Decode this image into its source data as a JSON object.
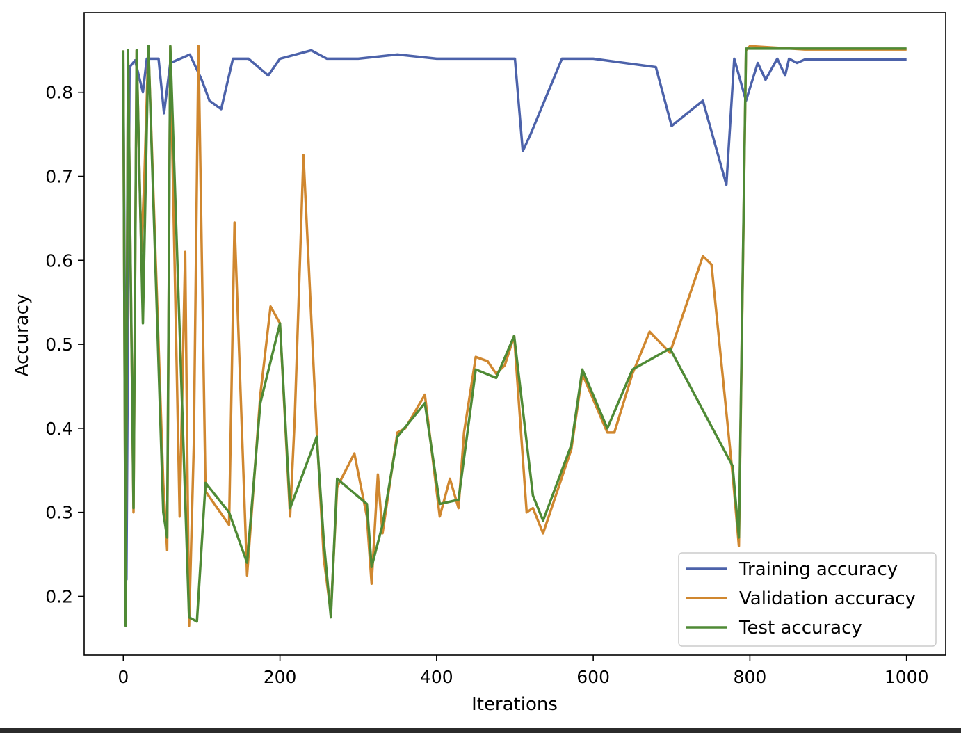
{
  "chart_data": {
    "type": "line",
    "title": "",
    "xlabel": "Iterations",
    "ylabel": "Accuracy",
    "xlim": [
      -50,
      1050
    ],
    "ylim": [
      0.13,
      0.895
    ],
    "xticks": [
      0,
      200,
      400,
      600,
      800,
      1000
    ],
    "yticks": [
      0.2,
      0.3,
      0.4,
      0.5,
      0.6,
      0.7,
      0.8
    ],
    "grid": false,
    "legend_position": "lower-right",
    "colors": {
      "training": "#4c62aa",
      "validation": "#d0872f",
      "test": "#4f8a35"
    },
    "series": [
      {
        "name": "Training accuracy",
        "color": "#4c62aa",
        "plateau": 0.839,
        "points": [
          [
            0,
            0.835
          ],
          [
            4,
            0.22
          ],
          [
            8,
            0.83
          ],
          [
            15,
            0.838
          ],
          [
            25,
            0.8
          ],
          [
            30,
            0.84
          ],
          [
            45,
            0.84
          ],
          [
            52,
            0.775
          ],
          [
            60,
            0.835
          ],
          [
            85,
            0.845
          ],
          [
            100,
            0.815
          ],
          [
            110,
            0.79
          ],
          [
            125,
            0.78
          ],
          [
            140,
            0.84
          ],
          [
            160,
            0.84
          ],
          [
            185,
            0.82
          ],
          [
            200,
            0.84
          ],
          [
            240,
            0.85
          ],
          [
            260,
            0.84
          ],
          [
            300,
            0.84
          ],
          [
            350,
            0.845
          ],
          [
            400,
            0.84
          ],
          [
            450,
            0.84
          ],
          [
            500,
            0.84
          ],
          [
            510,
            0.73
          ],
          [
            520,
            0.75
          ],
          [
            560,
            0.84
          ],
          [
            600,
            0.84
          ],
          [
            680,
            0.83
          ],
          [
            700,
            0.76
          ],
          [
            740,
            0.79
          ],
          [
            770,
            0.69
          ],
          [
            780,
            0.84
          ],
          [
            795,
            0.79
          ],
          [
            810,
            0.835
          ],
          [
            820,
            0.815
          ],
          [
            835,
            0.84
          ],
          [
            845,
            0.82
          ],
          [
            850,
            0.84
          ],
          [
            860,
            0.835
          ],
          [
            870,
            0.839
          ],
          [
            1000,
            0.839
          ]
        ]
      },
      {
        "name": "Validation accuracy",
        "color": "#d0872f",
        "plateau": 0.851,
        "points": [
          [
            0,
            0.85
          ],
          [
            3,
            0.17
          ],
          [
            6,
            0.85
          ],
          [
            13,
            0.3
          ],
          [
            17,
            0.85
          ],
          [
            23,
            0.61
          ],
          [
            27,
            0.7
          ],
          [
            32,
            0.855
          ],
          [
            51,
            0.335
          ],
          [
            56,
            0.255
          ],
          [
            60,
            0.855
          ],
          [
            72,
            0.295
          ],
          [
            79,
            0.61
          ],
          [
            84,
            0.165
          ],
          [
            90,
            0.38
          ],
          [
            96,
            0.855
          ],
          [
            105,
            0.325
          ],
          [
            135,
            0.285
          ],
          [
            142,
            0.645
          ],
          [
            158,
            0.225
          ],
          [
            175,
            0.44
          ],
          [
            188,
            0.545
          ],
          [
            200,
            0.525
          ],
          [
            213,
            0.295
          ],
          [
            219,
            0.415
          ],
          [
            230,
            0.725
          ],
          [
            247,
            0.395
          ],
          [
            256,
            0.245
          ],
          [
            265,
            0.18
          ],
          [
            273,
            0.33
          ],
          [
            295,
            0.37
          ],
          [
            311,
            0.295
          ],
          [
            317,
            0.215
          ],
          [
            325,
            0.345
          ],
          [
            331,
            0.275
          ],
          [
            350,
            0.395
          ],
          [
            360,
            0.4
          ],
          [
            385,
            0.44
          ],
          [
            404,
            0.295
          ],
          [
            417,
            0.34
          ],
          [
            428,
            0.305
          ],
          [
            435,
            0.395
          ],
          [
            450,
            0.485
          ],
          [
            465,
            0.48
          ],
          [
            476,
            0.465
          ],
          [
            487,
            0.475
          ],
          [
            499,
            0.51
          ],
          [
            515,
            0.3
          ],
          [
            523,
            0.305
          ],
          [
            536,
            0.275
          ],
          [
            572,
            0.375
          ],
          [
            586,
            0.465
          ],
          [
            618,
            0.395
          ],
          [
            627,
            0.395
          ],
          [
            650,
            0.465
          ],
          [
            672,
            0.515
          ],
          [
            698,
            0.49
          ],
          [
            740,
            0.605
          ],
          [
            751,
            0.595
          ],
          [
            778,
            0.345
          ],
          [
            786,
            0.26
          ],
          [
            795,
            0.85
          ],
          [
            800,
            0.855
          ],
          [
            870,
            0.851
          ],
          [
            1000,
            0.851
          ]
        ]
      },
      {
        "name": "Test accuracy",
        "color": "#4f8a35",
        "plateau": 0.852,
        "points": [
          [
            0,
            0.85
          ],
          [
            3,
            0.165
          ],
          [
            6,
            0.85
          ],
          [
            13,
            0.305
          ],
          [
            17,
            0.85
          ],
          [
            25,
            0.525
          ],
          [
            32,
            0.855
          ],
          [
            51,
            0.3
          ],
          [
            56,
            0.27
          ],
          [
            60,
            0.855
          ],
          [
            84,
            0.175
          ],
          [
            94,
            0.17
          ],
          [
            105,
            0.335
          ],
          [
            135,
            0.3
          ],
          [
            158,
            0.24
          ],
          [
            175,
            0.43
          ],
          [
            200,
            0.525
          ],
          [
            213,
            0.305
          ],
          [
            247,
            0.39
          ],
          [
            256,
            0.265
          ],
          [
            265,
            0.175
          ],
          [
            273,
            0.34
          ],
          [
            311,
            0.31
          ],
          [
            317,
            0.235
          ],
          [
            331,
            0.285
          ],
          [
            350,
            0.39
          ],
          [
            385,
            0.43
          ],
          [
            404,
            0.31
          ],
          [
            428,
            0.315
          ],
          [
            450,
            0.47
          ],
          [
            476,
            0.46
          ],
          [
            499,
            0.51
          ],
          [
            523,
            0.32
          ],
          [
            536,
            0.29
          ],
          [
            572,
            0.38
          ],
          [
            586,
            0.47
          ],
          [
            618,
            0.4
          ],
          [
            650,
            0.47
          ],
          [
            698,
            0.495
          ],
          [
            778,
            0.355
          ],
          [
            786,
            0.27
          ],
          [
            795,
            0.852
          ],
          [
            1000,
            0.852
          ]
        ]
      }
    ]
  }
}
